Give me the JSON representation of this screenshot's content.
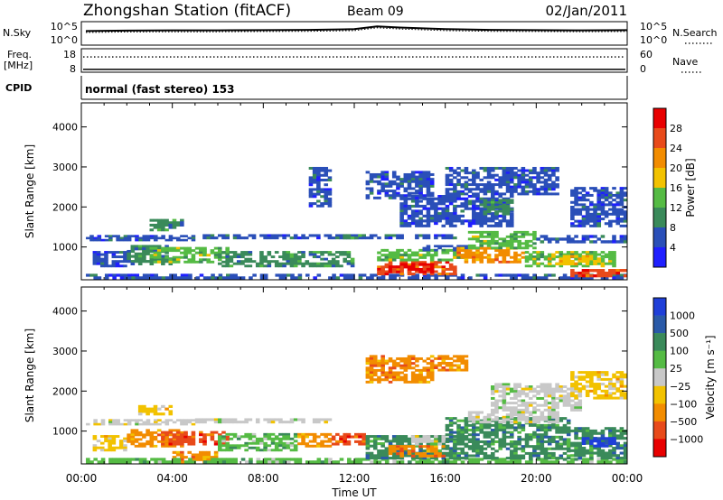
{
  "header": {
    "station": "Zhongshan Station (fitACF)",
    "beam": "Beam 09",
    "date": "02/Jan/2011"
  },
  "nsky_panel": {
    "left_label": "N.Sky",
    "left_ticks": [
      "10^5",
      "10^0"
    ],
    "right_label": "N.Search",
    "right_ticks": [
      "10^5",
      "10^0"
    ],
    "right_legend_line": "dotted"
  },
  "freq_panel": {
    "left_label_1": "Freq.",
    "left_label_2": "[MHz]",
    "left_ticks": [
      "18",
      "8"
    ],
    "right_label": "Nave",
    "right_ticks": [
      "60",
      "0"
    ],
    "right_legend_line": "dotted"
  },
  "cpid": {
    "label": "CPID",
    "text": "normal (fast stereo) 153"
  },
  "time_axis": {
    "label": "Time UT",
    "ticks": [
      "00:00",
      "04:00",
      "08:00",
      "12:00",
      "16:00",
      "20:00",
      "00:00"
    ],
    "hours": [
      0,
      4,
      8,
      12,
      16,
      20,
      24
    ]
  },
  "power_panel": {
    "ylabel": "Slant Range [km]",
    "yticks": [
      "1000",
      "2000",
      "3000",
      "4000"
    ],
    "ytick_values": [
      1000,
      2000,
      3000,
      4000
    ],
    "ylim": [
      180,
      4600
    ],
    "colorbar_label": "Power [dB]",
    "colorbar_ticks": [
      "4",
      "8",
      "12",
      "16",
      "20",
      "24",
      "28"
    ],
    "colorbar_colors": [
      "#1f1fff",
      "#2a4fb8",
      "#3a8a5a",
      "#55bb44",
      "#f2c200",
      "#f28c00",
      "#e84a1a",
      "#e80000"
    ]
  },
  "velocity_panel": {
    "ylabel": "Slant Range [km]",
    "yticks": [
      "1000",
      "2000",
      "3000",
      "4000"
    ],
    "ytick_values": [
      1000,
      2000,
      3000,
      4000
    ],
    "ylim": [
      180,
      4600
    ],
    "colorbar_label": "Velocity [m s⁻¹]",
    "colorbar_ticks": [
      "1000",
      "500",
      "100",
      "25",
      "−25",
      "−100",
      "−500",
      "−1000"
    ],
    "colorbar_colors": [
      "#1f3fd8",
      "#2a5aa8",
      "#3a8a5a",
      "#55bb44",
      "#c8c8c8",
      "#f2c200",
      "#f28c00",
      "#e84a1a",
      "#e80000"
    ]
  },
  "chart_data": {
    "type": "heatmap",
    "x_unit": "hours UT",
    "y_unit": "km",
    "power_regions": [
      {
        "x": [
          0.2,
          5.0
        ],
        "y": [
          1150,
          1300
        ],
        "level": 1
      },
      {
        "x": [
          5.0,
          10.5
        ],
        "y": [
          1200,
          1320
        ],
        "level": 1
      },
      {
        "x": [
          10.5,
          16.5
        ],
        "y": [
          1200,
          1320
        ],
        "level": 1
      },
      {
        "x": [
          0.5,
          2.0
        ],
        "y": [
          500,
          900
        ],
        "level": 1
      },
      {
        "x": [
          2.0,
          4.0
        ],
        "y": [
          550,
          1050
        ],
        "level": 2
      },
      {
        "x": [
          3.0,
          6.5
        ],
        "y": [
          600,
          1000
        ],
        "level": 3
      },
      {
        "x": [
          6.0,
          9.5
        ],
        "y": [
          500,
          900
        ],
        "level": 2
      },
      {
        "x": [
          9.5,
          12.0
        ],
        "y": [
          500,
          900
        ],
        "level": 2
      },
      {
        "x": [
          11.0,
          12.5
        ],
        "y": [
          1200,
          1320
        ],
        "level": 2
      },
      {
        "x": [
          0.2,
          24.0
        ],
        "y": [
          200,
          330
        ],
        "level": 1
      },
      {
        "x": [
          13.0,
          16.5
        ],
        "y": [
          300,
          650
        ],
        "level": 6
      },
      {
        "x": [
          13.5,
          15.5
        ],
        "y": [
          350,
          600
        ],
        "level": 7
      },
      {
        "x": [
          13.0,
          17.0
        ],
        "y": [
          650,
          950
        ],
        "level": 3
      },
      {
        "x": [
          15.0,
          17.0
        ],
        "y": [
          900,
          1050
        ],
        "level": 1
      },
      {
        "x": [
          16.5,
          19.5
        ],
        "y": [
          600,
          1000
        ],
        "level": 5
      },
      {
        "x": [
          17.0,
          20.0
        ],
        "y": [
          950,
          1400
        ],
        "level": 3
      },
      {
        "x": [
          19.5,
          23.5
        ],
        "y": [
          500,
          900
        ],
        "level": 3
      },
      {
        "x": [
          20.5,
          23.0
        ],
        "y": [
          550,
          800
        ],
        "level": 4
      },
      {
        "x": [
          21.5,
          24.0
        ],
        "y": [
          250,
          450
        ],
        "level": 6
      },
      {
        "x": [
          20.0,
          24.0
        ],
        "y": [
          1100,
          1300
        ],
        "level": 1
      },
      {
        "x": [
          14.0,
          19.0
        ],
        "y": [
          1500,
          2300
        ],
        "level": 1
      },
      {
        "x": [
          16.0,
          21.0
        ],
        "y": [
          2300,
          3000
        ],
        "level": 1
      },
      {
        "x": [
          12.5,
          15.5
        ],
        "y": [
          2200,
          2900
        ],
        "level": 1
      },
      {
        "x": [
          21.5,
          24.0
        ],
        "y": [
          1500,
          2500
        ],
        "level": 1
      },
      {
        "x": [
          3.0,
          4.5
        ],
        "y": [
          1400,
          1700
        ],
        "level": 2
      },
      {
        "x": [
          17.5,
          19.0
        ],
        "y": [
          1800,
          2200
        ],
        "level": 2
      },
      {
        "x": [
          10.0,
          11.0
        ],
        "y": [
          2000,
          3000
        ],
        "level": 1
      }
    ],
    "velocity_regions": [
      {
        "x": [
          0.2,
          5.0
        ],
        "y": [
          1150,
          1300
        ],
        "level": 4
      },
      {
        "x": [
          5.0,
          11.0
        ],
        "y": [
          1200,
          1320
        ],
        "level": 4
      },
      {
        "x": [
          0.5,
          2.0
        ],
        "y": [
          500,
          900
        ],
        "level": 5
      },
      {
        "x": [
          2.0,
          4.5
        ],
        "y": [
          600,
          1050
        ],
        "level": 6
      },
      {
        "x": [
          3.5,
          6.5
        ],
        "y": [
          650,
          1000
        ],
        "level": 7
      },
      {
        "x": [
          4.0,
          6.0
        ],
        "y": [
          200,
          500
        ],
        "level": 6
      },
      {
        "x": [
          6.0,
          9.5
        ],
        "y": [
          500,
          950
        ],
        "level": 3
      },
      {
        "x": [
          9.5,
          11.0
        ],
        "y": [
          600,
          950
        ],
        "level": 6
      },
      {
        "x": [
          11.0,
          12.5
        ],
        "y": [
          650,
          950
        ],
        "level": 7
      },
      {
        "x": [
          0.2,
          24.0
        ],
        "y": [
          200,
          330
        ],
        "level": 3
      },
      {
        "x": [
          12.5,
          17.0
        ],
        "y": [
          300,
          900
        ],
        "level": 2
      },
      {
        "x": [
          13.5,
          16.0
        ],
        "y": [
          350,
          650
        ],
        "level": 6
      },
      {
        "x": [
          14.5,
          16.0
        ],
        "y": [
          650,
          900
        ],
        "level": 4
      },
      {
        "x": [
          16.0,
          21.5
        ],
        "y": [
          300,
          1350
        ],
        "level": 2
      },
      {
        "x": [
          21.5,
          24.0
        ],
        "y": [
          300,
          1100
        ],
        "level": 2
      },
      {
        "x": [
          22.0,
          23.5
        ],
        "y": [
          600,
          850
        ],
        "level": 0
      },
      {
        "x": [
          12.5,
          15.5
        ],
        "y": [
          2200,
          2900
        ],
        "level": 6
      },
      {
        "x": [
          15.5,
          17.0
        ],
        "y": [
          2500,
          2900
        ],
        "level": 6
      },
      {
        "x": [
          18.0,
          22.0
        ],
        "y": [
          1500,
          2200
        ],
        "level": 4
      },
      {
        "x": [
          21.5,
          24.0
        ],
        "y": [
          1800,
          2500
        ],
        "level": 5
      },
      {
        "x": [
          17.0,
          21.0
        ],
        "y": [
          1200,
          1500
        ],
        "level": 4
      },
      {
        "x": [
          2.5,
          4.0
        ],
        "y": [
          1400,
          1650
        ],
        "level": 5
      }
    ],
    "nsky_curve": {
      "x": [
        0.2,
        2,
        4,
        6,
        8,
        10,
        12,
        13,
        14,
        16,
        18,
        20,
        22,
        24
      ],
      "value": [
        0.6,
        0.62,
        0.63,
        0.63,
        0.64,
        0.65,
        0.68,
        0.8,
        0.75,
        0.68,
        0.65,
        0.64,
        0.63,
        0.64
      ]
    },
    "freq_dotted_level": 0.65,
    "nave_solid_level": 0.12
  }
}
